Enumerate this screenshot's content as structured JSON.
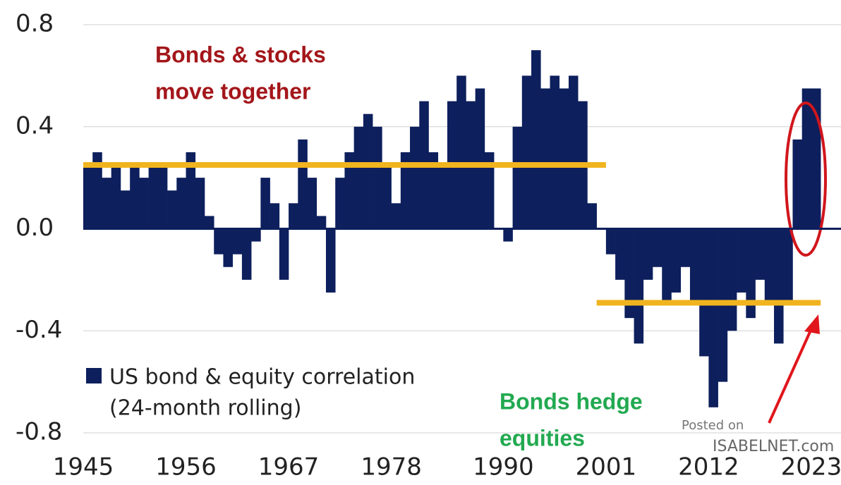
{
  "chart_data": {
    "type": "bar",
    "x": [
      1945,
      1946,
      1947,
      1948,
      1949,
      1950,
      1951,
      1952,
      1953,
      1954,
      1955,
      1956,
      1957,
      1958,
      1959,
      1960,
      1961,
      1962,
      1963,
      1964,
      1965,
      1966,
      1967,
      1968,
      1969,
      1970,
      1971,
      1972,
      1973,
      1974,
      1975,
      1976,
      1977,
      1978,
      1979,
      1980,
      1981,
      1982,
      1983,
      1984,
      1985,
      1986,
      1987,
      1988,
      1989,
      1990,
      1991,
      1992,
      1993,
      1994,
      1995,
      1996,
      1997,
      1998,
      1999,
      2000,
      2001,
      2002,
      2003,
      2004,
      2005,
      2006,
      2007,
      2008,
      2009,
      2010,
      2011,
      2012,
      2013,
      2014,
      2015,
      2016,
      2017,
      2018,
      2019,
      2020,
      2021,
      2022,
      2023
    ],
    "series": [
      {
        "name": [
          "US bond & equity correlation",
          "(24-month rolling)"
        ],
        "color": "#0d1f5c",
        "values": [
          0.25,
          0.3,
          0.2,
          0.25,
          0.15,
          0.25,
          0.2,
          0.25,
          0.25,
          0.15,
          0.2,
          0.3,
          0.2,
          0.05,
          -0.1,
          -0.15,
          -0.1,
          -0.2,
          -0.05,
          0.2,
          0.1,
          -0.2,
          0.1,
          0.35,
          0.2,
          0.05,
          -0.25,
          0.2,
          0.3,
          0.4,
          0.45,
          0.4,
          0.25,
          0.1,
          0.3,
          0.4,
          0.5,
          0.3,
          0.25,
          0.5,
          0.6,
          0.5,
          0.55,
          0.3,
          0.0,
          -0.05,
          0.4,
          0.6,
          0.7,
          0.55,
          0.6,
          0.55,
          0.6,
          0.5,
          0.1,
          0.0,
          -0.1,
          -0.2,
          -0.35,
          -0.45,
          -0.2,
          -0.15,
          -0.3,
          -0.25,
          -0.15,
          -0.3,
          -0.5,
          -0.7,
          -0.6,
          -0.4,
          -0.25,
          -0.35,
          -0.2,
          -0.3,
          -0.45,
          -0.3,
          0.35,
          0.55,
          0.55
        ]
      }
    ],
    "xlim": [
      1945,
      2026
    ],
    "xticks": [
      1945,
      1956,
      1967,
      1978,
      1990,
      2001,
      2012,
      2023
    ],
    "ylim": [
      -0.85,
      0.85
    ],
    "yticks": [
      {
        "value": 0.8,
        "label": "0.8"
      },
      {
        "value": 0.4,
        "label": "0.4"
      },
      {
        "value": 0,
        "label": "0.0"
      },
      {
        "value": -0.4,
        "label": "-0.4"
      },
      {
        "value": -0.8,
        "label": "-0.8"
      }
    ],
    "grid": true,
    "reference_lines": [
      {
        "value": 0.25,
        "x": [
          1945,
          2000
        ],
        "color": "#f0b41e"
      },
      {
        "value": -0.29,
        "x": [
          2000,
          2023
        ],
        "color": "#f0b41e"
      }
    ],
    "annotations": [
      {
        "lines": [
          "Bonds & stocks",
          "move together"
        ],
        "color": "#a3161a"
      },
      {
        "lines": [
          "Bonds hedge",
          "equities"
        ],
        "color": "#22a950"
      }
    ],
    "watermark": [
      "Posted on",
      "ISABELNET.com"
    ]
  }
}
